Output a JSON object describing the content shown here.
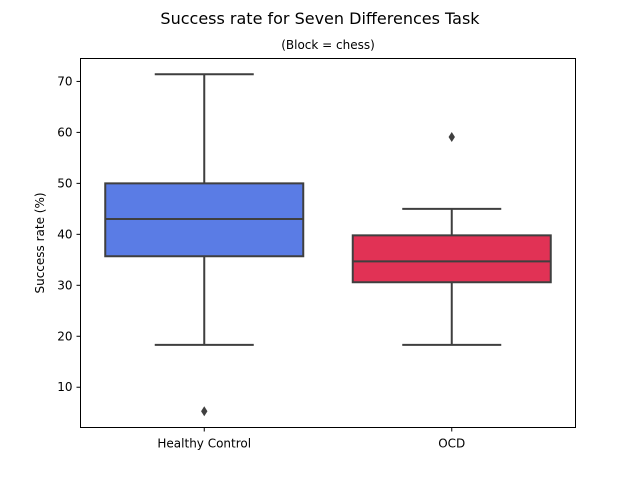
{
  "chart_data": {
    "type": "box",
    "title": "Success rate for Seven Differences Task",
    "subtitle": "(Block = chess)",
    "xlabel": "",
    "ylabel": "Success rate (%)",
    "ylim": [
      2.1,
      74.5
    ],
    "yticks": [
      10,
      20,
      30,
      40,
      50,
      60,
      70
    ],
    "grid": false,
    "categories": [
      "Healthy Control",
      "OCD"
    ],
    "boxes": [
      {
        "category": "Healthy Control",
        "color": "#4169e1",
        "whisker_low": 18.3,
        "q1": 35.7,
        "median": 43.0,
        "q3": 50.0,
        "whisker_high": 71.4,
        "outliers": [
          5.3
        ]
      },
      {
        "category": "OCD",
        "color": "#dc143c",
        "whisker_low": 18.3,
        "q1": 30.6,
        "median": 34.7,
        "q3": 39.8,
        "whisker_high": 45.0,
        "outliers": [
          59.1
        ]
      }
    ]
  }
}
